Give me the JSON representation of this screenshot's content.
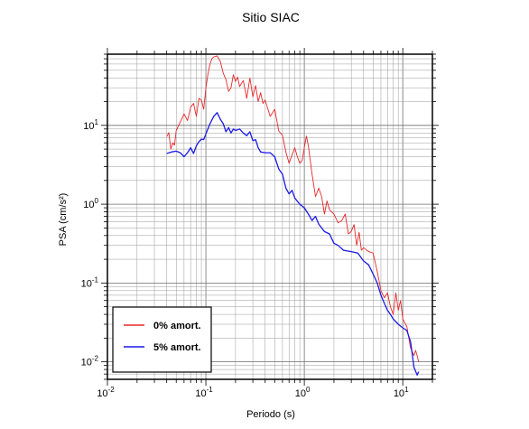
{
  "chart_data": {
    "type": "line",
    "title": "Sitio SIAC",
    "xlabel": "Periodo (s)",
    "ylabel": "PSA (cm/s²)",
    "x_scale": "log",
    "y_scale": "log",
    "xlim": [
      0.01,
      20
    ],
    "ylim": [
      0.006,
      80
    ],
    "grid": true,
    "legend_position": "bottom-left",
    "x_ticks": [
      {
        "base": "10",
        "exp": "-2"
      },
      {
        "base": "10",
        "exp": "-1"
      },
      {
        "base": "10",
        "exp": "0"
      },
      {
        "base": "10",
        "exp": "1"
      }
    ],
    "y_ticks": [
      {
        "base": "10",
        "exp": "-2"
      },
      {
        "base": "10",
        "exp": "-1"
      },
      {
        "base": "10",
        "exp": "0"
      },
      {
        "base": "10",
        "exp": "1"
      }
    ],
    "series": [
      {
        "name": "0% amort.",
        "color": "#e8282a",
        "points": [
          [
            0.04,
            7.2
          ],
          [
            0.042,
            8.1
          ],
          [
            0.044,
            5.0
          ],
          [
            0.046,
            6.0
          ],
          [
            0.048,
            5.6
          ],
          [
            0.05,
            8.6
          ],
          [
            0.055,
            11
          ],
          [
            0.06,
            14
          ],
          [
            0.065,
            11.5
          ],
          [
            0.07,
            17
          ],
          [
            0.075,
            19
          ],
          [
            0.08,
            13
          ],
          [
            0.085,
            22
          ],
          [
            0.09,
            21
          ],
          [
            0.095,
            16
          ],
          [
            0.1,
            30
          ],
          [
            0.105,
            45
          ],
          [
            0.11,
            60
          ],
          [
            0.115,
            70
          ],
          [
            0.12,
            74
          ],
          [
            0.13,
            76
          ],
          [
            0.14,
            65
          ],
          [
            0.15,
            46
          ],
          [
            0.16,
            38
          ],
          [
            0.17,
            27
          ],
          [
            0.18,
            30
          ],
          [
            0.19,
            44
          ],
          [
            0.2,
            36
          ],
          [
            0.21,
            41
          ],
          [
            0.22,
            31
          ],
          [
            0.24,
            37
          ],
          [
            0.26,
            22
          ],
          [
            0.28,
            40
          ],
          [
            0.3,
            23
          ],
          [
            0.32,
            32
          ],
          [
            0.34,
            20
          ],
          [
            0.36,
            26
          ],
          [
            0.38,
            19
          ],
          [
            0.4,
            21
          ],
          [
            0.45,
            13
          ],
          [
            0.5,
            16
          ],
          [
            0.55,
            8.5
          ],
          [
            0.6,
            7.5
          ],
          [
            0.65,
            4.6
          ],
          [
            0.7,
            3.3
          ],
          [
            0.75,
            4.2
          ],
          [
            0.8,
            5.2
          ],
          [
            0.85,
            4.0
          ],
          [
            0.9,
            3.3
          ],
          [
            0.95,
            3.6
          ],
          [
            1.0,
            5.2
          ],
          [
            1.05,
            7.3
          ],
          [
            1.1,
            5.5
          ],
          [
            1.2,
            2.4
          ],
          [
            1.3,
            1.25
          ],
          [
            1.4,
            1.6
          ],
          [
            1.5,
            1.25
          ],
          [
            1.6,
            0.75
          ],
          [
            1.7,
            1.1
          ],
          [
            1.8,
            0.85
          ],
          [
            2.0,
            0.75
          ],
          [
            2.2,
            0.58
          ],
          [
            2.4,
            0.62
          ],
          [
            2.6,
            0.75
          ],
          [
            2.8,
            0.42
          ],
          [
            3.0,
            0.45
          ],
          [
            3.2,
            0.55
          ],
          [
            3.4,
            0.3
          ],
          [
            3.6,
            0.44
          ],
          [
            3.8,
            0.26
          ],
          [
            4.0,
            0.28
          ],
          [
            4.5,
            0.25
          ],
          [
            5.0,
            0.24
          ],
          [
            5.5,
            0.14
          ],
          [
            6.0,
            0.08
          ],
          [
            6.5,
            0.065
          ],
          [
            7.0,
            0.075
          ],
          [
            7.5,
            0.05
          ],
          [
            8.0,
            0.04
          ],
          [
            8.5,
            0.075
          ],
          [
            9.0,
            0.045
          ],
          [
            9.5,
            0.06
          ],
          [
            10,
            0.035
          ],
          [
            11,
            0.028
          ],
          [
            12,
            0.015
          ],
          [
            13,
            0.012
          ],
          [
            13.5,
            0.014
          ],
          [
            14,
            0.012
          ],
          [
            14.5,
            0.01
          ]
        ]
      },
      {
        "name": "5% amort.",
        "color": "#1a1ae6",
        "points": [
          [
            0.04,
            4.4
          ],
          [
            0.045,
            4.6
          ],
          [
            0.05,
            4.7
          ],
          [
            0.055,
            4.5
          ],
          [
            0.06,
            4.0
          ],
          [
            0.065,
            4.5
          ],
          [
            0.07,
            5.2
          ],
          [
            0.075,
            4.4
          ],
          [
            0.08,
            5.5
          ],
          [
            0.085,
            6.2
          ],
          [
            0.09,
            6.7
          ],
          [
            0.095,
            6.6
          ],
          [
            0.1,
            7.8
          ],
          [
            0.11,
            10.5
          ],
          [
            0.12,
            13
          ],
          [
            0.13,
            14.5
          ],
          [
            0.14,
            12
          ],
          [
            0.15,
            10.5
          ],
          [
            0.16,
            8.3
          ],
          [
            0.17,
            9.4
          ],
          [
            0.18,
            8.0
          ],
          [
            0.19,
            9.0
          ],
          [
            0.2,
            8.6
          ],
          [
            0.22,
            9.0
          ],
          [
            0.24,
            8.0
          ],
          [
            0.26,
            7.4
          ],
          [
            0.28,
            8.3
          ],
          [
            0.3,
            6.4
          ],
          [
            0.32,
            6.6
          ],
          [
            0.34,
            5.2
          ],
          [
            0.36,
            4.6
          ],
          [
            0.4,
            4.5
          ],
          [
            0.45,
            4.5
          ],
          [
            0.5,
            4.0
          ],
          [
            0.55,
            2.8
          ],
          [
            0.6,
            2.4
          ],
          [
            0.65,
            1.6
          ],
          [
            0.7,
            1.35
          ],
          [
            0.75,
            1.5
          ],
          [
            0.8,
            1.2
          ],
          [
            0.9,
            1.0
          ],
          [
            1.0,
            0.9
          ],
          [
            1.1,
            0.75
          ],
          [
            1.2,
            0.62
          ],
          [
            1.3,
            0.7
          ],
          [
            1.4,
            0.56
          ],
          [
            1.5,
            0.5
          ],
          [
            1.6,
            0.45
          ],
          [
            1.8,
            0.42
          ],
          [
            2.0,
            0.32
          ],
          [
            2.2,
            0.3
          ],
          [
            2.5,
            0.26
          ],
          [
            3.0,
            0.25
          ],
          [
            3.5,
            0.24
          ],
          [
            4.0,
            0.19
          ],
          [
            4.5,
            0.17
          ],
          [
            5.0,
            0.13
          ],
          [
            5.5,
            0.1
          ],
          [
            6.0,
            0.07
          ],
          [
            6.5,
            0.055
          ],
          [
            7.0,
            0.045
          ],
          [
            7.5,
            0.04
          ],
          [
            8.0,
            0.035
          ],
          [
            9.0,
            0.03
          ],
          [
            10,
            0.027
          ],
          [
            11,
            0.025
          ],
          [
            12,
            0.018
          ],
          [
            13,
            0.0085
          ],
          [
            14,
            0.0068
          ],
          [
            14.5,
            0.0075
          ]
        ]
      }
    ]
  }
}
